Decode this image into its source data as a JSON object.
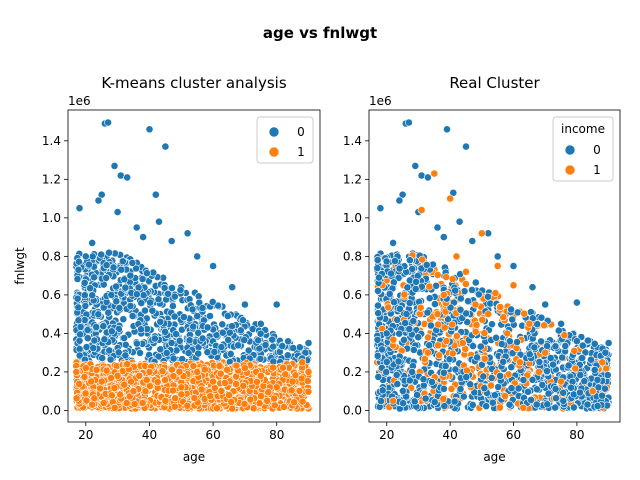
{
  "figure": {
    "suptitle": "age vs fnlwgt"
  },
  "colors": {
    "cluster_0": "#1f77b4",
    "cluster_1": "#ff7f0e"
  },
  "chart_data": [
    {
      "type": "scatter",
      "title": "K-means cluster analysis",
      "xlabel": "age",
      "ylabel": "fnlwgt",
      "y_multiplier_label": "1e6",
      "xlim": [
        14.4,
        93.6
      ],
      "ylim": [
        -0.06,
        1.56
      ],
      "xticks": [
        20,
        40,
        60,
        80
      ],
      "yticks": [
        0.0,
        0.2,
        0.4,
        0.6,
        0.8,
        1.0,
        1.2,
        1.4
      ],
      "ytick_labels": [
        "0.0",
        "0.2",
        "0.4",
        "0.6",
        "0.8",
        "1.0",
        "1.2",
        "1.4"
      ],
      "legend": {
        "title": "",
        "placement": "upper right",
        "entries": [
          "0",
          "1"
        ]
      },
      "series": [
        {
          "name": "0",
          "description": "fnlwgt above about 0.25e6",
          "x": [
            26,
            27,
            40,
            45,
            29,
            31,
            33,
            25,
            24,
            42,
            52,
            18,
            30,
            36,
            38,
            47,
            60,
            66,
            80,
            90,
            89,
            88,
            20,
            22,
            43,
            55,
            70,
            75,
            34,
            28
          ],
          "y": [
            1.49,
            1.495,
            1.46,
            1.37,
            1.27,
            1.22,
            1.21,
            1.12,
            1.09,
            1.12,
            0.92,
            1.05,
            1.03,
            0.95,
            0.9,
            0.88,
            0.75,
            0.64,
            0.55,
            0.35,
            0.3,
            0.27,
            0.8,
            0.87,
            0.98,
            0.8,
            0.55,
            0.45,
            0.7,
            0.6
          ]
        },
        {
          "name": "1",
          "description": "fnlwgt below about 0.25e6",
          "x": [
            17,
            20,
            25,
            30,
            35,
            40,
            45,
            50,
            55,
            60,
            65,
            70,
            75,
            80,
            85,
            90,
            22,
            33,
            48,
            62,
            77,
            88
          ],
          "y": [
            0.2,
            0.22,
            0.15,
            0.18,
            0.1,
            0.2,
            0.05,
            0.12,
            0.2,
            0.15,
            0.08,
            0.22,
            0.18,
            0.12,
            0.15,
            0.2,
            0.03,
            0.24,
            0.02,
            0.23,
            0.05,
            0.25
          ]
        }
      ]
    },
    {
      "type": "scatter",
      "title": "Real Cluster",
      "xlabel": "age",
      "ylabel": "",
      "y_multiplier_label": "1e6",
      "xlim": [
        14.4,
        93.6
      ],
      "ylim": [
        -0.06,
        1.56
      ],
      "xticks": [
        20,
        40,
        60,
        80
      ],
      "yticks": [
        0.0,
        0.2,
        0.4,
        0.6,
        0.8,
        1.0,
        1.2,
        1.4
      ],
      "ytick_labels": [
        "0.0",
        "0.2",
        "0.4",
        "0.6",
        "0.8",
        "1.0",
        "1.2",
        "1.4"
      ],
      "legend": {
        "title": "income",
        "placement": "upper right",
        "entries": [
          "0",
          "1"
        ]
      },
      "series": [
        {
          "name": "0",
          "x": [
            26,
            27,
            39,
            45,
            29,
            31,
            33,
            25,
            24,
            41,
            52,
            18,
            30,
            36,
            38,
            47,
            60,
            66,
            80,
            90,
            89,
            22,
            43,
            55,
            70,
            75,
            20,
            28
          ],
          "y": [
            1.49,
            1.495,
            1.46,
            1.37,
            1.27,
            1.22,
            1.21,
            1.12,
            1.09,
            1.13,
            0.92,
            1.05,
            1.03,
            0.95,
            0.9,
            0.88,
            0.75,
            0.64,
            0.56,
            0.35,
            0.3,
            0.87,
            0.98,
            0.8,
            0.55,
            0.45,
            0.4,
            0.2
          ]
        },
        {
          "name": "1",
          "x": [
            35,
            40,
            31,
            50,
            42,
            45,
            55,
            60,
            38,
            48,
            52,
            65,
            58,
            44,
            36,
            70,
            33,
            62,
            68,
            75,
            85,
            88,
            22
          ],
          "y": [
            1.23,
            1.1,
            1.04,
            0.92,
            0.8,
            0.72,
            0.75,
            0.65,
            0.6,
            0.55,
            0.5,
            0.45,
            0.4,
            0.35,
            0.5,
            0.3,
            0.3,
            0.25,
            0.2,
            0.15,
            0.1,
            0.25,
            0.05
          ]
        }
      ]
    }
  ]
}
